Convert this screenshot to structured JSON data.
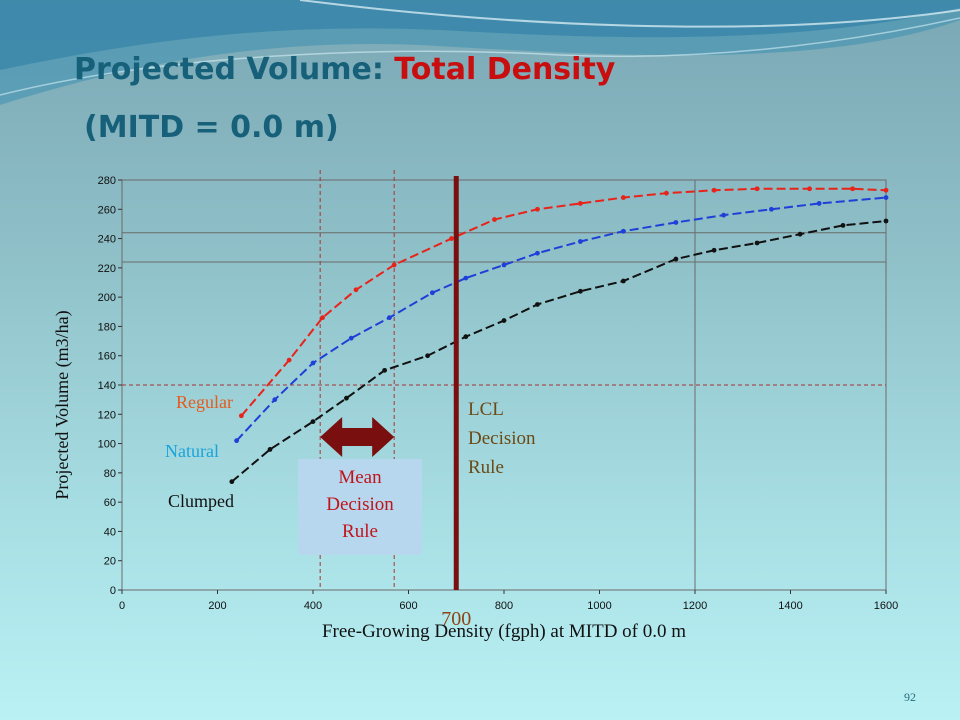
{
  "slide": {
    "title_main": "Projected Volume: ",
    "title_accent": "Total Density",
    "subtitle": "(MITD = 0.0 m)",
    "page_number": "92"
  },
  "colors": {
    "regular": "#e8231a",
    "natural": "#1e3fd8",
    "clumped": "#111111",
    "decision_line": "#7a0f0f",
    "mean_box": "#b6d7ee",
    "regular_label": "#e65a1e",
    "natural_label": "#1aa4dc"
  },
  "chart_data": {
    "type": "line",
    "xlabel": "Free-Growing Density (fgph) at MITD of 0.0 m",
    "ylabel": "Projected Volume (m3/ha)",
    "xlim": [
      0,
      1600
    ],
    "ylim": [
      0,
      280
    ],
    "xticks": [
      0,
      200,
      400,
      600,
      800,
      1000,
      1200,
      1400,
      1600
    ],
    "yticks": [
      0,
      20,
      40,
      60,
      80,
      100,
      120,
      140,
      160,
      180,
      200,
      220,
      240,
      260,
      280
    ],
    "grid_x": [
      1200
    ],
    "grid_y": [
      224,
      244,
      280
    ],
    "series": [
      {
        "name": "Regular",
        "x": [
          250,
          350,
          420,
          490,
          570,
          690,
          780,
          870,
          960,
          1050,
          1140,
          1240,
          1330,
          1440,
          1530,
          1600
        ],
        "y": [
          119,
          157,
          186,
          205,
          222,
          240,
          253,
          260,
          264,
          268,
          271,
          273,
          274,
          274,
          274,
          273
        ]
      },
      {
        "name": "Natural",
        "x": [
          240,
          320,
          400,
          480,
          560,
          650,
          720,
          800,
          870,
          960,
          1050,
          1160,
          1260,
          1360,
          1460,
          1600
        ],
        "y": [
          102,
          130,
          155,
          172,
          186,
          203,
          213,
          222,
          230,
          238,
          245,
          251,
          256,
          260,
          264,
          268
        ]
      },
      {
        "name": "Clumped",
        "x": [
          230,
          310,
          400,
          470,
          550,
          640,
          720,
          800,
          870,
          960,
          1050,
          1160,
          1240,
          1330,
          1420,
          1510,
          1600
        ],
        "y": [
          74,
          96,
          115,
          131,
          150,
          160,
          173,
          184,
          195,
          204,
          211,
          226,
          232,
          237,
          243,
          249,
          252
        ]
      }
    ],
    "annotations": {
      "lcl_decision_x": 700,
      "lcl_label": "LCL Decision Rule",
      "lcl_value_label": "700",
      "mean_decision_range": [
        415,
        570
      ],
      "mean_label": "Mean Decision Rule",
      "reference_y": 140
    }
  }
}
